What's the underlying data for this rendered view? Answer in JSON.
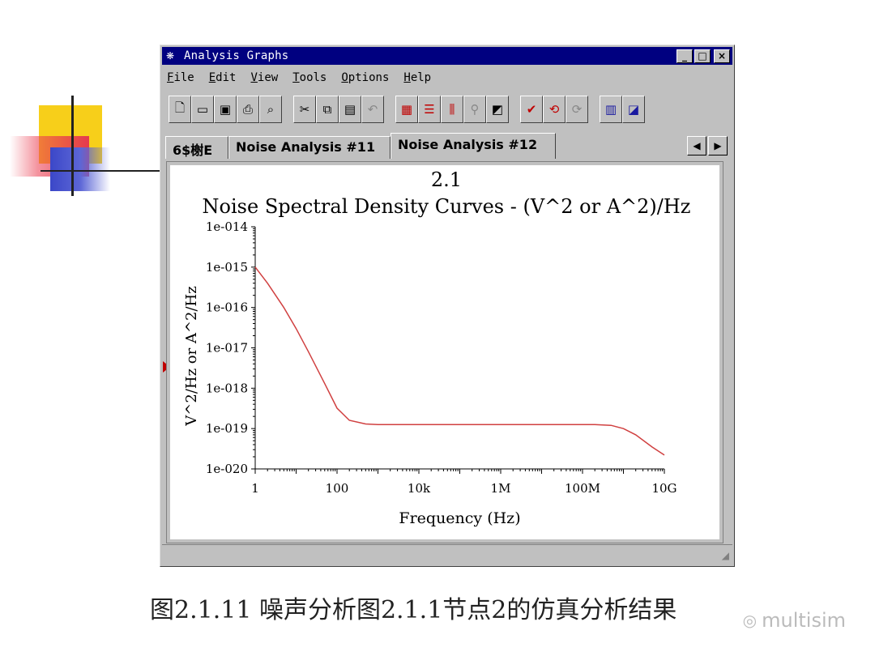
{
  "window": {
    "title": "Analysis Graphs",
    "icon": "app-graph-icon",
    "controls": {
      "minimize": "_",
      "maximize": "□",
      "close": "×"
    }
  },
  "menu": [
    {
      "u": "F",
      "rest": "ile"
    },
    {
      "u": "E",
      "rest": "dit"
    },
    {
      "u": "V",
      "rest": "iew"
    },
    {
      "u": "T",
      "rest": "ools"
    },
    {
      "u": "O",
      "rest": "ptions"
    },
    {
      "u": "H",
      "rest": "elp"
    }
  ],
  "toolbar": [
    [
      "new-icon",
      "open-icon",
      "save-icon",
      "print-icon",
      "print-preview-icon"
    ],
    [
      "cut-icon",
      "copy-icon",
      "paste-icon",
      "undo-icon"
    ],
    [
      "grid-icon",
      "legend-icon",
      "cursors-icon",
      "zoom-icon",
      "reverse-colors-icon"
    ],
    [
      "check-icon",
      "restore-icon",
      "overlay-icon"
    ],
    [
      "export-icon",
      "graph-properties-icon"
    ]
  ],
  "tabs": [
    "6$榭E",
    "Noise Analysis #11",
    "Noise Analysis #12"
  ],
  "active_tab": 2,
  "chart_data": {
    "type": "line",
    "title": "2.1",
    "subtitle": "Noise Spectral Density Curves - (V^2 or A^2)/Hz",
    "xlabel": "Frequency (Hz)",
    "ylabel": "V^2/Hz or A^2/Hz",
    "x_scale": "log",
    "y_scale": "log",
    "xlim": [
      1,
      10000000000
    ],
    "ylim": [
      1e-20,
      1e-14
    ],
    "x_ticks": [
      "1",
      "100",
      "10k",
      "1M",
      "100M",
      "10G"
    ],
    "y_ticks": [
      "1e-014",
      "1e-015",
      "1e-016",
      "1e-017",
      "1e-018",
      "1e-019",
      "1e-020"
    ],
    "grid": false,
    "series_color": "#d04040",
    "series": [
      {
        "x": [
          1,
          2,
          5,
          10,
          20,
          50,
          100,
          200,
          500,
          1000,
          10000,
          100000,
          1000000,
          10000000,
          100000000,
          200000000,
          500000000,
          1000000000,
          2000000000,
          5000000000,
          10000000000
        ],
        "y": [
          1e-15,
          4e-16,
          1e-16,
          3e-17,
          8e-18,
          1.3e-18,
          3.2e-19,
          1.6e-19,
          1.3e-19,
          1.25e-19,
          1.25e-19,
          1.25e-19,
          1.25e-19,
          1.25e-19,
          1.25e-19,
          1.25e-19,
          1.2e-19,
          1e-19,
          7e-20,
          3.5e-20,
          2.2e-20
        ]
      }
    ]
  },
  "caption": "图2.1.11 噪声分析图2.1.1节点2的仿真分析结果",
  "watermark": "multisim",
  "watermark_icon": "wechat-icon"
}
